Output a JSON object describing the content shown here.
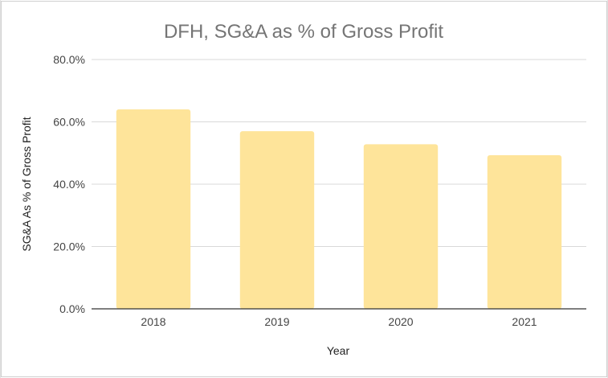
{
  "chart_data": {
    "type": "bar",
    "title": "DFH, SG&A as % of Gross Profit",
    "xlabel": "Year",
    "ylabel": "SG&A As % of Gross Profit",
    "categories": [
      "2018",
      "2019",
      "2020",
      "2021"
    ],
    "values": [
      64.0,
      57.0,
      52.8,
      49.3
    ],
    "ylim": [
      0,
      80
    ],
    "yticks": [
      "0.0%",
      "20.0%",
      "40.0%",
      "60.0%",
      "80.0%"
    ],
    "ytick_values": [
      0,
      20,
      40,
      60,
      80
    ],
    "grid": true,
    "legend": "none",
    "bar_color": "#fee49a",
    "gridline_color": "#d9d9d9",
    "baseline_color": "#333333"
  }
}
